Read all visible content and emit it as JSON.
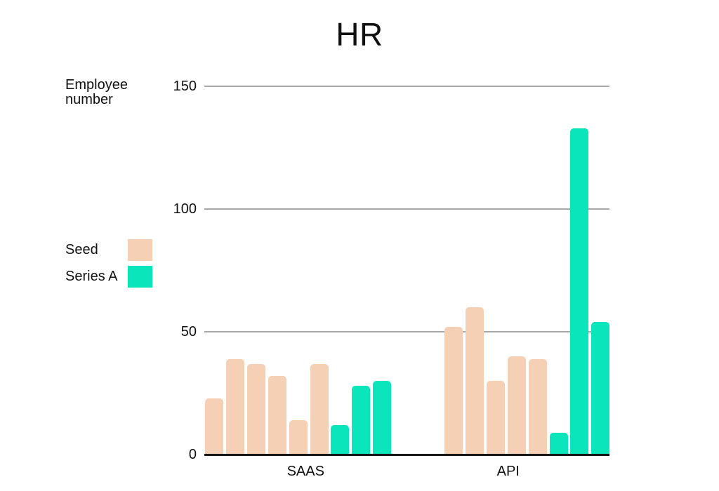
{
  "title": "HR",
  "chart_data": {
    "type": "bar",
    "title": "HR",
    "ylabel": "Employee number",
    "xlabel": "",
    "categories": [
      "SAAS",
      "API"
    ],
    "series": [
      {
        "name": "Seed",
        "color": "#f5d0b5",
        "values": [
          [
            23,
            39,
            37,
            32,
            14,
            37
          ],
          [
            52,
            60,
            30,
            40,
            39
          ]
        ]
      },
      {
        "name": "Series A",
        "color": "#0ae5bb",
        "values": [
          [
            12,
            28,
            30
          ],
          [
            9,
            133,
            54
          ]
        ]
      }
    ],
    "yticks": [
      0,
      50,
      100,
      150
    ],
    "ylim": [
      0,
      150
    ],
    "grid": true,
    "gridline_color": "#a8a8a8",
    "axis_color": "#161616",
    "legend_position": "left"
  }
}
